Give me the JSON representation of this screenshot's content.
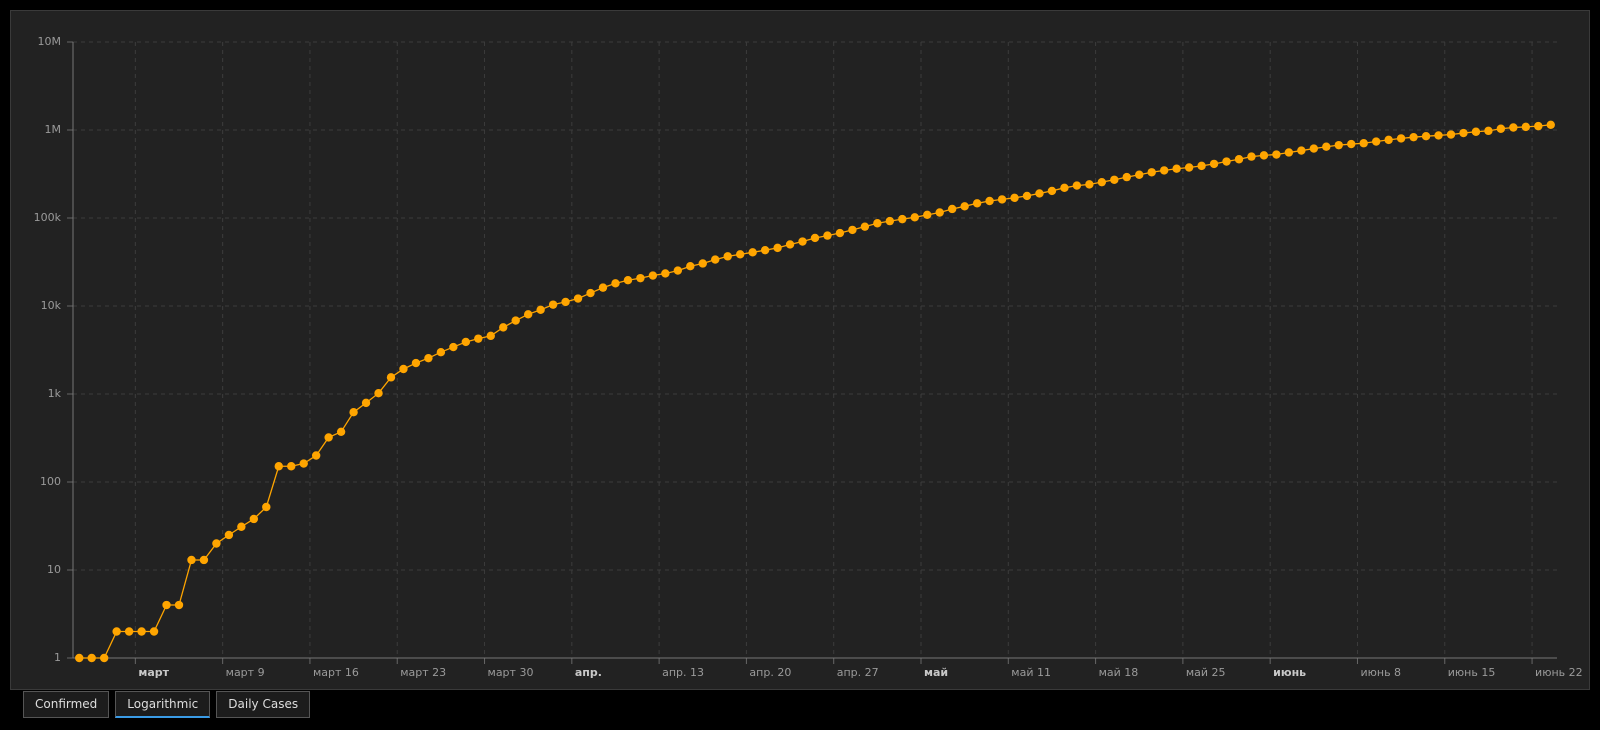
{
  "chart_data": {
    "type": "line",
    "log_scale": true,
    "grid": true,
    "color": "#ffa500",
    "x": [
      "02-26",
      "02-27",
      "02-28",
      "02-29",
      "03-01",
      "03-02",
      "03-03",
      "03-04",
      "03-05",
      "03-06",
      "03-07",
      "03-08",
      "03-09",
      "03-10",
      "03-11",
      "03-12",
      "03-13",
      "03-14",
      "03-15",
      "03-16",
      "03-17",
      "03-18",
      "03-19",
      "03-20",
      "03-21",
      "03-22",
      "03-23",
      "03-24",
      "03-25",
      "03-26",
      "03-27",
      "03-28",
      "03-29",
      "03-30",
      "03-31",
      "04-01",
      "04-02",
      "04-03",
      "04-04",
      "04-05",
      "04-06",
      "04-07",
      "04-08",
      "04-09",
      "04-10",
      "04-11",
      "04-12",
      "04-13",
      "04-14",
      "04-15",
      "04-16",
      "04-17",
      "04-18",
      "04-19",
      "04-20",
      "04-21",
      "04-22",
      "04-23",
      "04-24",
      "04-25",
      "04-26",
      "04-27",
      "04-28",
      "04-29",
      "04-30",
      "05-01",
      "05-02",
      "05-03",
      "05-04",
      "05-05",
      "05-06",
      "05-07",
      "05-08",
      "05-09",
      "05-10",
      "05-11",
      "05-12",
      "05-13",
      "05-14",
      "05-15",
      "05-16",
      "05-17",
      "05-18",
      "05-19",
      "05-20",
      "05-21",
      "05-22",
      "05-23",
      "05-24",
      "05-25",
      "05-26",
      "05-27",
      "05-28",
      "05-29",
      "05-30",
      "05-31",
      "06-01",
      "06-02",
      "06-03",
      "06-04",
      "06-05",
      "06-06",
      "06-07",
      "06-08",
      "06-09",
      "06-10",
      "06-11",
      "06-12",
      "06-13",
      "06-14",
      "06-15",
      "06-16",
      "06-17",
      "06-18",
      "06-19",
      "06-20",
      "06-21",
      "06-22",
      "06-23"
    ],
    "values": [
      1,
      1,
      1,
      2,
      2,
      2,
      2,
      4,
      4,
      13,
      13,
      20,
      25,
      31,
      38,
      52,
      151,
      151,
      162,
      200,
      321,
      372,
      621,
      793,
      1021,
      1546,
      1924,
      2247,
      2554,
      2985,
      3417,
      3904,
      4256,
      4579,
      5717,
      6836,
      8044,
      9056,
      10360,
      11130,
      12161,
      14034,
      16170,
      18092,
      19638,
      20727,
      22192,
      23430,
      25262,
      28320,
      30425,
      33682,
      36658,
      38654,
      40743,
      43079,
      45757,
      50036,
      54043,
      59324,
      63100,
      67446,
      73235,
      79685,
      87187,
      92202,
      97100,
      101826,
      108620,
      115455,
      126611,
      135773,
      146894,
      156061,
      162699,
      169594,
      178214,
      190137,
      203165,
      220291,
      233511,
      241080,
      255368,
      271885,
      291579,
      310087,
      330890,
      347398,
      363211,
      374898,
      391222,
      411821,
      438238,
      465166,
      498440,
      514849,
      526447,
      555383,
      584016,
      614941,
      645771,
      672846,
      691758,
      707412,
      739503,
      772416,
      802828,
      828810,
      850514,
      867624,
      888271,
      923189,
      955377,
      978142,
      1032913,
      1067579,
      1085038,
      1106470,
      1145906
    ],
    "xlim": [
      "02-26",
      "06-24"
    ],
    "xticks": [
      {
        "value": "03-02",
        "label": "март"
      },
      {
        "value": "03-09",
        "label": "март 9"
      },
      {
        "value": "03-16",
        "label": "март 16"
      },
      {
        "value": "03-23",
        "label": "март 23"
      },
      {
        "value": "03-30",
        "label": "март 30"
      },
      {
        "value": "04-06",
        "label": "апр."
      },
      {
        "value": "04-13",
        "label": "апр. 13"
      },
      {
        "value": "04-20",
        "label": "апр. 20"
      },
      {
        "value": "04-27",
        "label": "апр. 27"
      },
      {
        "value": "05-04",
        "label": "май"
      },
      {
        "value": "05-11",
        "label": "май 11"
      },
      {
        "value": "05-18",
        "label": "май 18"
      },
      {
        "value": "05-25",
        "label": "май 25"
      },
      {
        "value": "06-01",
        "label": "июнь"
      },
      {
        "value": "06-08",
        "label": "июнь 8"
      },
      {
        "value": "06-15",
        "label": "июнь 15"
      },
      {
        "value": "06-22",
        "label": "июнь 22"
      }
    ],
    "ylim": [
      1,
      10000000
    ],
    "yticks": [
      1,
      10,
      100,
      {
        "value": 1000,
        "label": "1k"
      },
      {
        "value": 10000,
        "label": "10k"
      },
      {
        "value": 100000,
        "label": "100k"
      },
      {
        "value": 1000000,
        "label": "1M"
      },
      {
        "value": 10000000,
        "label": "10M"
      }
    ]
  },
  "tabs": {
    "items": [
      "Confirmed",
      "Logarithmic",
      "Daily Cases"
    ],
    "selected": 1
  }
}
